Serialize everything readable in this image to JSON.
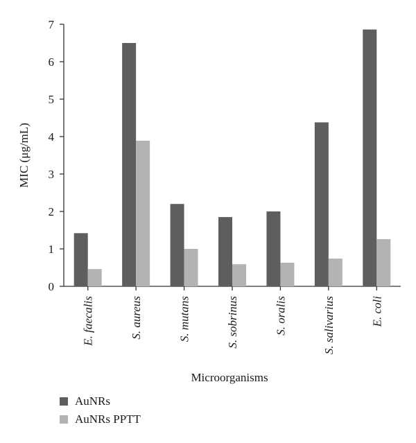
{
  "chart_data": {
    "type": "bar",
    "title": "",
    "xlabel": "Microorganisms",
    "ylabel": "MIC (μg/mL)",
    "ylim": [
      0,
      7
    ],
    "yticks": [
      0,
      1,
      2,
      3,
      4,
      5,
      6,
      7
    ],
    "grid": false,
    "legend_position": "bottom-left",
    "categories": [
      "E. faecalis",
      "S. aureus",
      "S. mutans",
      "S. sobrinus",
      "S. oralis",
      "S. salivarius",
      "E. coli"
    ],
    "series": [
      {
        "name": "AuNRs",
        "color": "#5e5e5e",
        "values": [
          1.42,
          6.5,
          2.2,
          1.85,
          2.0,
          4.38,
          6.86
        ]
      },
      {
        "name": "AuNRs PPTT",
        "color": "#b3b3b3",
        "values": [
          0.46,
          3.89,
          1.0,
          0.59,
          0.63,
          0.74,
          1.26
        ]
      }
    ]
  }
}
